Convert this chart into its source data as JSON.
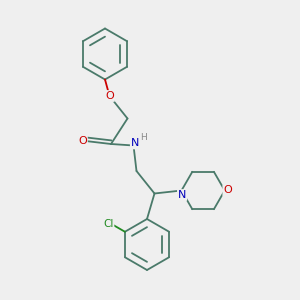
{
  "background_color": "#efefef",
  "bond_color": "#4a7a6a",
  "atom_colors": {
    "O": "#cc0000",
    "N": "#0000bb",
    "Cl": "#228b22",
    "C": "#4a7a6a",
    "H": "#888888"
  },
  "figsize": [
    3.0,
    3.0
  ],
  "dpi": 100,
  "xlim": [
    0,
    10
  ],
  "ylim": [
    0,
    10
  ]
}
